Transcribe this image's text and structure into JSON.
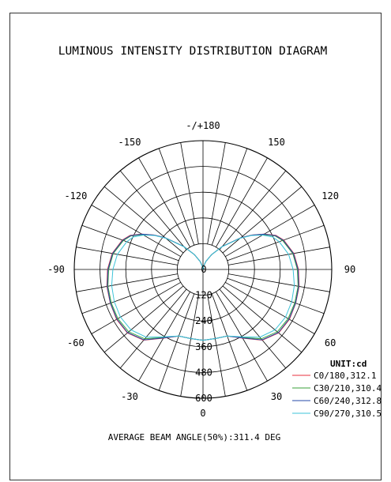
{
  "chart_data": {
    "type": "polar",
    "title": "LUMINOUS INTENSITY DISTRIBUTION DIAGRAM",
    "angle_labels": [
      {
        "angle": 180,
        "text": "-/+180"
      },
      {
        "angle": 150,
        "text": "150"
      },
      {
        "angle": -150,
        "text": "-150"
      },
      {
        "angle": 120,
        "text": "120"
      },
      {
        "angle": -120,
        "text": "-120"
      },
      {
        "angle": 90,
        "text": "90"
      },
      {
        "angle": -90,
        "text": "-90"
      },
      {
        "angle": 60,
        "text": "60"
      },
      {
        "angle": -60,
        "text": "-60"
      },
      {
        "angle": 30,
        "text": "30"
      },
      {
        "angle": -30,
        "text": "-30"
      },
      {
        "angle": 0,
        "text": "0"
      }
    ],
    "radial_ticks": [
      "0",
      "120",
      "240",
      "360",
      "480",
      "600"
    ],
    "radial_max": 600,
    "angular_grid_step_deg": 10,
    "unit_label": "UNIT:cd",
    "series": [
      {
        "name": "C0/180,312.1",
        "color": "#e8323c",
        "points": [
          [
            0,
            330
          ],
          [
            10,
            327
          ],
          [
            20,
            330
          ],
          [
            30,
            370
          ],
          [
            40,
            430
          ],
          [
            50,
            460
          ],
          [
            60,
            465
          ],
          [
            70,
            460
          ],
          [
            80,
            455
          ],
          [
            90,
            445
          ],
          [
            100,
            430
          ],
          [
            110,
            400
          ],
          [
            115,
            375
          ],
          [
            120,
            330
          ],
          [
            125,
            280
          ],
          [
            130,
            230
          ],
          [
            140,
            140
          ],
          [
            150,
            80
          ],
          [
            160,
            40
          ],
          [
            170,
            15
          ],
          [
            180,
            0
          ]
        ]
      },
      {
        "name": "C30/210,310.4",
        "color": "#3aa13a",
        "points": [
          [
            0,
            330
          ],
          [
            10,
            327
          ],
          [
            20,
            330
          ],
          [
            30,
            366
          ],
          [
            40,
            422
          ],
          [
            50,
            452
          ],
          [
            60,
            458
          ],
          [
            70,
            455
          ],
          [
            80,
            450
          ],
          [
            90,
            440
          ],
          [
            100,
            425
          ],
          [
            110,
            395
          ],
          [
            115,
            370
          ],
          [
            120,
            325
          ],
          [
            125,
            278
          ],
          [
            130,
            228
          ],
          [
            140,
            140
          ],
          [
            150,
            80
          ],
          [
            160,
            40
          ],
          [
            170,
            15
          ],
          [
            180,
            0
          ]
        ]
      },
      {
        "name": "C60/240,312.8",
        "color": "#2448a8",
        "points": [
          [
            0,
            330
          ],
          [
            10,
            327
          ],
          [
            20,
            330
          ],
          [
            30,
            368
          ],
          [
            40,
            428
          ],
          [
            50,
            458
          ],
          [
            60,
            463
          ],
          [
            70,
            459
          ],
          [
            80,
            453
          ],
          [
            90,
            443
          ],
          [
            100,
            428
          ],
          [
            110,
            398
          ],
          [
            115,
            373
          ],
          [
            120,
            328
          ],
          [
            125,
            279
          ],
          [
            130,
            229
          ],
          [
            140,
            140
          ],
          [
            150,
            80
          ],
          [
            160,
            40
          ],
          [
            170,
            15
          ],
          [
            180,
            0
          ]
        ]
      },
      {
        "name": "C90/270,310.5",
        "color": "#3cc3d8",
        "points": [
          [
            0,
            330
          ],
          [
            10,
            327
          ],
          [
            20,
            330
          ],
          [
            30,
            362
          ],
          [
            40,
            412
          ],
          [
            50,
            438
          ],
          [
            60,
            444
          ],
          [
            70,
            440
          ],
          [
            80,
            432
          ],
          [
            90,
            420
          ],
          [
            100,
            405
          ],
          [
            110,
            378
          ],
          [
            115,
            358
          ],
          [
            120,
            320
          ],
          [
            125,
            276
          ],
          [
            130,
            226
          ],
          [
            140,
            138
          ],
          [
            150,
            80
          ],
          [
            160,
            40
          ],
          [
            170,
            15
          ],
          [
            180,
            0
          ]
        ]
      }
    ],
    "average_beam_angle_text": "AVERAGE BEAM ANGLE(50%):311.4 DEG"
  }
}
